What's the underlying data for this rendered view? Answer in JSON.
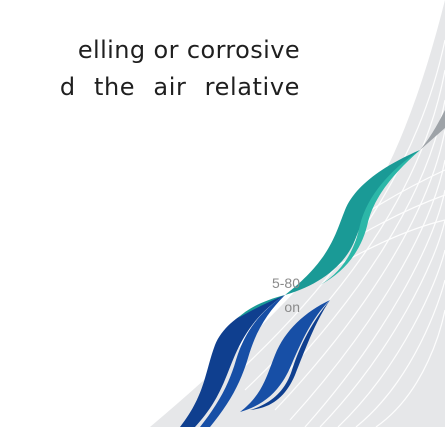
{
  "slide": {
    "body_line_1": "elling or corrosive",
    "body_line_2": "d the air relative",
    "note_line_1": "5-80",
    "note_line_2": "on"
  },
  "colors": {
    "background": "#ffffff",
    "swoosh_grey": "#e6e7e9",
    "stripe_grey": "#9ea3a8",
    "teal": "#1a9a96",
    "teal_light": "#2cb7a8",
    "blue": "#174fa6",
    "blue_dark": "#0f3f8f"
  },
  "logo": {
    "name": "swoosh-emblem"
  }
}
